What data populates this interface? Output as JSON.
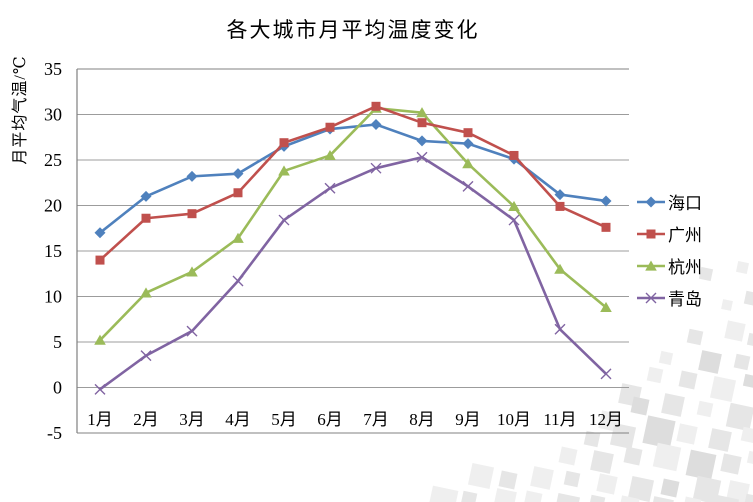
{
  "title": "各大城市月平均温度变化",
  "y_axis_title": "月平均气温/℃",
  "chart_data": {
    "type": "line",
    "title": "各大城市月平均温度变化",
    "xlabel": "",
    "ylabel": "月平均气温/℃",
    "categories": [
      "1月",
      "2月",
      "3月",
      "4月",
      "5月",
      "6月",
      "7月",
      "8月",
      "9月",
      "10月",
      "11月",
      "12月"
    ],
    "series": [
      {
        "id": "haikou",
        "name": "海口",
        "color": "#4f81bd",
        "marker": "diamond",
        "values": [
          17.0,
          21.0,
          23.2,
          23.5,
          26.5,
          28.4,
          28.9,
          27.1,
          26.8,
          25.1,
          21.2,
          20.5
        ]
      },
      {
        "id": "guangzhou",
        "name": "广州",
        "color": "#c0504d",
        "marker": "square",
        "values": [
          14.0,
          18.6,
          19.1,
          21.4,
          26.9,
          28.6,
          30.9,
          29.1,
          28.0,
          25.5,
          19.9,
          17.6
        ]
      },
      {
        "id": "hangzhou",
        "name": "杭州",
        "color": "#9bbb59",
        "marker": "triangle",
        "values": [
          5.2,
          10.4,
          12.7,
          16.4,
          23.8,
          25.5,
          30.7,
          30.2,
          24.6,
          19.9,
          13.0,
          8.8
        ]
      },
      {
        "id": "qingdao",
        "name": "青岛",
        "color": "#8064a2",
        "marker": "x",
        "values": [
          -0.2,
          3.5,
          6.2,
          11.7,
          18.4,
          21.9,
          24.1,
          25.3,
          22.1,
          18.4,
          6.4,
          1.5
        ]
      }
    ],
    "draw_order": [
      "haikou",
      "hangzhou",
      "guangzhou",
      "qingdao"
    ],
    "ylim": [
      -5,
      35
    ],
    "yticks": [
      35,
      30,
      25,
      20,
      15,
      10,
      5,
      0,
      -5
    ],
    "grid": true,
    "legend_position": "right"
  },
  "colors": {
    "gridline": "#9c9c9c",
    "axis_line": "#808080",
    "text": "#000000",
    "background": "#ffffff"
  }
}
